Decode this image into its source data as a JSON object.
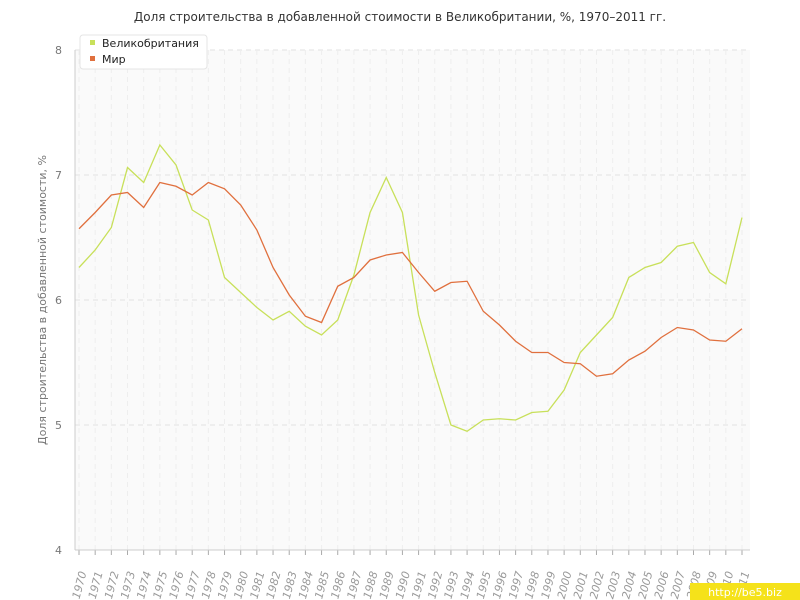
{
  "chart_data": {
    "type": "line",
    "title": "Доля строительства в добавленной стоимости в Великобритании, %, 1970–2011 гг.",
    "y_label": "Доля строительства в добавленной стоимости, %",
    "categories": [
      "1970",
      "1971",
      "1972",
      "1973",
      "1974",
      "1975",
      "1976",
      "1977",
      "1978",
      "1979",
      "1980",
      "1981",
      "1982",
      "1983",
      "1984",
      "1985",
      "1986",
      "1987",
      "1988",
      "1989",
      "1990",
      "1991",
      "1992",
      "1993",
      "1994",
      "1995",
      "1996",
      "1997",
      "1998",
      "1999",
      "2000",
      "2001",
      "2002",
      "2003",
      "2004",
      "2005",
      "2006",
      "2007",
      "2008",
      "2009",
      "2010",
      "2011"
    ],
    "series": [
      {
        "name": "Великобритания",
        "color": "#c8e05a",
        "values": [
          6.26,
          6.4,
          6.58,
          7.06,
          6.94,
          7.24,
          7.08,
          6.72,
          6.64,
          6.18,
          6.06,
          5.94,
          5.84,
          5.91,
          5.79,
          5.72,
          5.84,
          6.2,
          6.7,
          6.98,
          6.7,
          5.88,
          5.42,
          5.0,
          4.95,
          5.04,
          5.05,
          5.04,
          5.1,
          5.11,
          5.28,
          5.58,
          5.72,
          5.86,
          6.18,
          6.26,
          6.3,
          6.43,
          6.46,
          6.22,
          6.13,
          6.66
        ]
      },
      {
        "name": "Мир",
        "color": "#e0703e",
        "values": [
          6.57,
          6.7,
          6.84,
          6.86,
          6.74,
          6.94,
          6.91,
          6.84,
          6.94,
          6.89,
          6.76,
          6.56,
          6.26,
          6.04,
          5.87,
          5.82,
          6.11,
          6.18,
          6.32,
          6.36,
          6.38,
          6.22,
          6.07,
          6.14,
          6.15,
          5.91,
          5.8,
          5.67,
          5.58,
          5.58,
          5.5,
          5.49,
          5.39,
          5.41,
          5.52,
          5.59,
          5.7,
          5.78,
          5.76,
          5.68,
          5.67,
          5.77
        ]
      }
    ],
    "ylim": [
      4,
      8
    ],
    "yticks": [
      4,
      5,
      6,
      7,
      8
    ],
    "grid": true,
    "legend": "top-left",
    "watermark": "http://be5.biz"
  }
}
